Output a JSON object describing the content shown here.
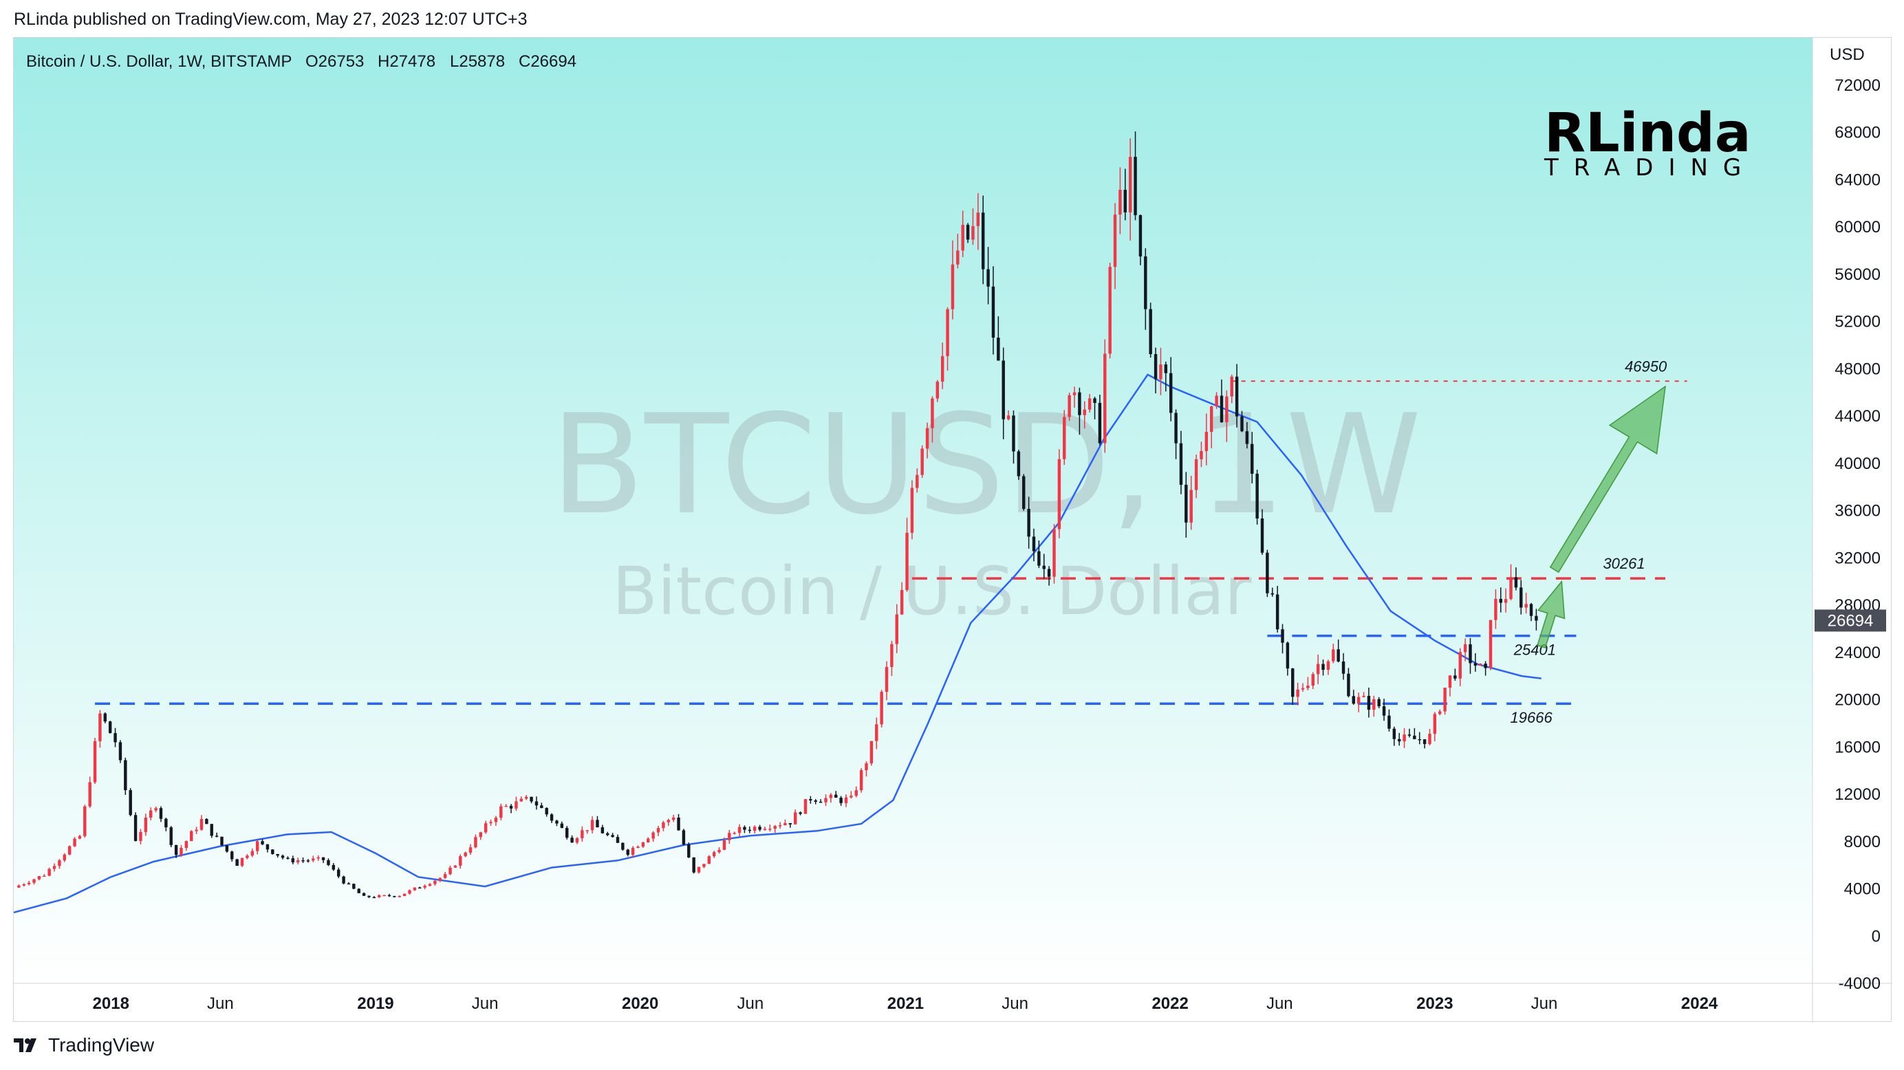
{
  "publisher": "RLinda published on TradingView.com, May 27, 2023 12:07 UTC+3",
  "header": {
    "symbol_line": "Bitcoin / U.S. Dollar, 1W, BITSTAMP",
    "open": "O26753",
    "high": "H27478",
    "low": "L25878",
    "close": "C26694"
  },
  "watermark": {
    "ticker": "BTCUSD, 1W",
    "name": "Bitcoin / U.S. Dollar"
  },
  "logo": {
    "big": "RLinda",
    "small": "TRADING"
  },
  "footer": {
    "brand": "TradingView"
  },
  "colors": {
    "bg_top": "#9fece6",
    "bg_bottom": "#ffffff",
    "up": "#f23645",
    "down": "#131722",
    "ma": "#2962ff",
    "support": "#2962ff",
    "resistance": "#f23645",
    "arrow": "#5cb85c"
  },
  "chart_data": {
    "type": "line",
    "title": "Bitcoin / U.S. Dollar, 1W, BITSTAMP",
    "ylabel": "USD",
    "ylim": [
      -4000,
      76000
    ],
    "y_ticks": [
      72000,
      68000,
      64000,
      60000,
      56000,
      52000,
      48000,
      44000,
      40000,
      36000,
      32000,
      28000,
      24000,
      20000,
      16000,
      12000,
      8000,
      4000,
      0,
      -4000
    ],
    "x_ticks": [
      {
        "label": "2018",
        "date": "2018-01-01",
        "bold": true
      },
      {
        "label": "Jun",
        "date": "2018-06-01",
        "bold": false
      },
      {
        "label": "2019",
        "date": "2019-01-01",
        "bold": true
      },
      {
        "label": "Jun",
        "date": "2019-06-01",
        "bold": false
      },
      {
        "label": "2020",
        "date": "2020-01-01",
        "bold": true
      },
      {
        "label": "Jun",
        "date": "2020-06-01",
        "bold": false
      },
      {
        "label": "2021",
        "date": "2021-01-01",
        "bold": true
      },
      {
        "label": "Jun",
        "date": "2021-06-01",
        "bold": false
      },
      {
        "label": "2022",
        "date": "2022-01-01",
        "bold": true
      },
      {
        "label": "Jun",
        "date": "2022-06-01",
        "bold": false
      },
      {
        "label": "2023",
        "date": "2023-01-01",
        "bold": true
      },
      {
        "label": "Jun",
        "date": "2023-06-01",
        "bold": false
      },
      {
        "label": "2024",
        "date": "2024-01-01",
        "bold": true
      }
    ],
    "x_range": [
      "2017-08-20",
      "2024-06-05"
    ],
    "last_price": 26694,
    "close_path": [
      [
        "2017-08-20",
        4100
      ],
      [
        "2017-10-01",
        5200
      ],
      [
        "2017-11-20",
        8500
      ],
      [
        "2017-12-17",
        18700
      ],
      [
        "2018-01-07",
        16500
      ],
      [
        "2018-02-04",
        8200
      ],
      [
        "2018-03-04",
        11200
      ],
      [
        "2018-04-01",
        6900
      ],
      [
        "2018-05-06",
        9800
      ],
      [
        "2018-06-24",
        6100
      ],
      [
        "2018-07-22",
        7900
      ],
      [
        "2018-09-02",
        6400
      ],
      [
        "2018-10-21",
        6450
      ],
      [
        "2018-11-18",
        4600
      ],
      [
        "2018-12-16",
        3300
      ],
      [
        "2019-02-03",
        3450
      ],
      [
        "2019-04-07",
        5100
      ],
      [
        "2019-06-23",
        10800
      ],
      [
        "2019-08-04",
        11600
      ],
      [
        "2019-09-29",
        8200
      ],
      [
        "2019-10-27",
        9500
      ],
      [
        "2019-12-15",
        7100
      ],
      [
        "2020-02-16",
        10200
      ],
      [
        "2020-03-15",
        5300
      ],
      [
        "2020-05-10",
        8900
      ],
      [
        "2020-07-26",
        9700
      ],
      [
        "2020-08-23",
        11700
      ],
      [
        "2020-10-18",
        11500
      ],
      [
        "2020-11-15",
        16000
      ],
      [
        "2020-12-27",
        28900
      ],
      [
        "2021-01-10",
        38000
      ],
      [
        "2021-02-14",
        48000
      ],
      [
        "2021-03-14",
        58000
      ],
      [
        "2021-04-11",
        60000
      ],
      [
        "2021-05-16",
        45000
      ],
      [
        "2021-06-20",
        33000
      ],
      [
        "2021-07-18",
        31500
      ],
      [
        "2021-08-15",
        47000
      ],
      [
        "2021-09-26",
        43000
      ],
      [
        "2021-10-17",
        61000
      ],
      [
        "2021-11-07",
        64000
      ],
      [
        "2021-12-05",
        49000
      ],
      [
        "2021-12-26",
        47000
      ],
      [
        "2022-01-23",
        36000
      ],
      [
        "2022-02-13",
        42000
      ],
      [
        "2022-03-27",
        46500
      ],
      [
        "2022-04-24",
        39000
      ],
      [
        "2022-05-15",
        30000
      ],
      [
        "2022-06-19",
        20000
      ],
      [
        "2022-07-24",
        23000
      ],
      [
        "2022-08-14",
        24000
      ],
      [
        "2022-09-11",
        20000
      ],
      [
        "2022-10-16",
        19500
      ],
      [
        "2022-11-13",
        16500
      ],
      [
        "2022-12-25",
        16800
      ],
      [
        "2023-01-15",
        21000
      ],
      [
        "2023-02-12",
        24000
      ],
      [
        "2023-03-12",
        22000
      ],
      [
        "2023-03-19",
        27500
      ],
      [
        "2023-04-16",
        29500
      ],
      [
        "2023-05-07",
        28000
      ],
      [
        "2023-05-21",
        26694
      ]
    ],
    "series": [
      {
        "name": "",
        "type": "moving-average",
        "points": [
          [
            "2017-08-20",
            2000
          ],
          [
            "2017-11-01",
            3200
          ],
          [
            "2018-01-01",
            5000
          ],
          [
            "2018-03-01",
            6300
          ],
          [
            "2018-06-01",
            7600
          ],
          [
            "2018-09-01",
            8600
          ],
          [
            "2018-11-01",
            8800
          ],
          [
            "2019-01-01",
            7000
          ],
          [
            "2019-03-01",
            5000
          ],
          [
            "2019-06-01",
            4200
          ],
          [
            "2019-09-01",
            5800
          ],
          [
            "2019-12-01",
            6400
          ],
          [
            "2020-03-01",
            7700
          ],
          [
            "2020-06-01",
            8500
          ],
          [
            "2020-09-01",
            8900
          ],
          [
            "2020-11-01",
            9500
          ],
          [
            "2020-12-15",
            11500
          ],
          [
            "2021-02-01",
            18000
          ],
          [
            "2021-04-01",
            26500
          ],
          [
            "2021-06-01",
            30500
          ],
          [
            "2021-08-01",
            35000
          ],
          [
            "2021-10-01",
            42000
          ],
          [
            "2021-12-01",
            47500
          ],
          [
            "2022-01-01",
            46500
          ],
          [
            "2022-03-01",
            45000
          ],
          [
            "2022-05-01",
            43500
          ],
          [
            "2022-07-01",
            39000
          ],
          [
            "2022-09-01",
            33000
          ],
          [
            "2022-11-01",
            27500
          ],
          [
            "2023-01-01",
            25000
          ],
          [
            "2023-03-01",
            23000
          ],
          [
            "2023-05-01",
            22000
          ],
          [
            "2023-05-28",
            21800
          ]
        ]
      }
    ],
    "levels": [
      {
        "value": 46950,
        "label": "46950",
        "color": "#f23645",
        "style": "dotted",
        "from": "2022-03-27",
        "to": "2023-12-15"
      },
      {
        "value": 30261,
        "label": "30261",
        "color": "#f23645",
        "style": "dashed",
        "from": "2021-01-10",
        "to": "2023-11-15"
      },
      {
        "value": 25401,
        "label": "25401",
        "color": "#2962ff",
        "style": "dashed",
        "from": "2022-05-15",
        "to": "2023-07-15"
      },
      {
        "value": 19666,
        "label": "19666",
        "color": "#2962ff",
        "style": "dashed",
        "from": "2017-12-10",
        "to": "2023-07-10"
      }
    ],
    "projection": [
      {
        "from": [
          "2023-05-28",
          24500
        ],
        "to": [
          "2023-06-25",
          30000
        ]
      },
      {
        "from": [
          "2023-06-15",
          31000
        ],
        "to": [
          "2023-11-15",
          46500
        ]
      }
    ],
    "grid": false
  }
}
